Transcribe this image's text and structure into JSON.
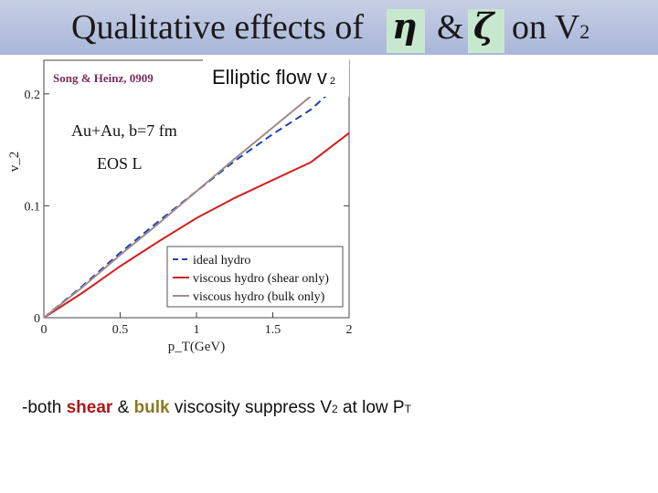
{
  "slide": {
    "title_prefix": "Qualitative effects of",
    "eta_symbol": "η",
    "amp": "&",
    "zeta_symbol": "ζ",
    "title_on": "on V",
    "title_sub": "2",
    "citation": "Song & Heinz, 0909",
    "subtitle_main": "Elliptic flow v",
    "subtitle_sub": "2",
    "bullet": {
      "part1": "-both ",
      "shear": "shear",
      "amp": " & ",
      "bulk": "bulk",
      "part2": " viscosity suppress ",
      "v2": "V",
      "v2_sub": "2",
      "part3": " at low ",
      "pt": "P",
      "pt_sub": "T"
    },
    "colors": {
      "title_bg": "#b6c1df",
      "greek_bg": "#c7e8cf",
      "shear": "#b01717",
      "bulk": "#8a7a26"
    }
  },
  "chart_data": {
    "type": "line",
    "annotations": [
      "Au+Au, b=7 fm",
      "EOS L"
    ],
    "xlabel": "p_T(GeV)",
    "ylabel": "v_2",
    "xlim": [
      0,
      2
    ],
    "ylim": [
      0,
      0.23
    ],
    "xticks": [
      "0",
      "0.5",
      "1",
      "1.5",
      "2"
    ],
    "yticks": [
      "0",
      "0.1",
      "0.2"
    ],
    "legend_position": "lower-right",
    "x": [
      0,
      0.25,
      0.5,
      0.75,
      1.0,
      1.25,
      1.5,
      1.75,
      2.0
    ],
    "series": [
      {
        "name": "ideal hydro",
        "color": "#1f3fb8",
        "dash": "dashed",
        "values": [
          0,
          0.028,
          0.058,
          0.086,
          0.113,
          0.14,
          0.164,
          0.186,
          0.217
        ]
      },
      {
        "name": "viscous hydro (shear only)",
        "color": "#d42020",
        "dash": "solid",
        "values": [
          0,
          0.022,
          0.046,
          0.068,
          0.089,
          0.107,
          0.123,
          0.139,
          0.165
        ]
      },
      {
        "name": "viscous hydro (bulk only)",
        "color": "#a08c8c",
        "dash": "solid",
        "values": [
          0,
          0.027,
          0.056,
          0.084,
          0.113,
          0.142,
          0.17,
          0.198,
          0.226
        ]
      }
    ]
  }
}
